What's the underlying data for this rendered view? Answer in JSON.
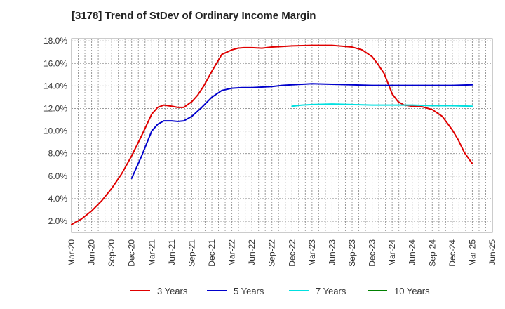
{
  "title": "[3178]  Trend of StDev of Ordinary Income Margin",
  "chart_data": {
    "type": "line",
    "x_ticks": [
      "Mar-20",
      "Jun-20",
      "Sep-20",
      "Dec-20",
      "Mar-21",
      "Jun-21",
      "Sep-21",
      "Dec-21",
      "Mar-22",
      "Jun-22",
      "Sep-22",
      "Dec-22",
      "Mar-23",
      "Jun-23",
      "Sep-23",
      "Dec-23",
      "Mar-24",
      "Jun-24",
      "Sep-24",
      "Dec-24",
      "Mar-25",
      "Jun-25"
    ],
    "y_ticks": [
      "2.0%",
      "4.0%",
      "6.0%",
      "8.0%",
      "10.0%",
      "12.0%",
      "14.0%",
      "16.0%",
      "18.0%"
    ],
    "ylim": [
      1.0,
      18.2
    ],
    "grid": true,
    "legend_position": "bottom",
    "series": [
      {
        "name": "3 Years",
        "color": "#e00000",
        "x": [
          0,
          0.5,
          1,
          1.5,
          2,
          2.5,
          3,
          3.5,
          4,
          4.3,
          4.6,
          5,
          5.3,
          5.6,
          6,
          6.3,
          6.6,
          7,
          7.5,
          8,
          8.3,
          8.6,
          9,
          9.5,
          10,
          10.5,
          11,
          12,
          13,
          14,
          14.5,
          15,
          15.3,
          15.6,
          16,
          16.3,
          16.6,
          17,
          17.5,
          18,
          18.5,
          19,
          19.3,
          19.6,
          20
        ],
        "y": [
          1.7,
          2.2,
          2.9,
          3.8,
          4.9,
          6.2,
          7.8,
          9.6,
          11.5,
          12.1,
          12.3,
          12.2,
          12.1,
          12.1,
          12.6,
          13.2,
          14.0,
          15.3,
          16.8,
          17.2,
          17.35,
          17.4,
          17.4,
          17.35,
          17.45,
          17.5,
          17.55,
          17.6,
          17.6,
          17.45,
          17.2,
          16.6,
          15.9,
          15.1,
          13.3,
          12.6,
          12.3,
          12.2,
          12.15,
          11.9,
          11.3,
          10.1,
          9.2,
          8.1,
          7.1
        ]
      },
      {
        "name": "5 Years",
        "color": "#0000cc",
        "x": [
          3,
          3.5,
          4,
          4.3,
          4.6,
          5,
          5.3,
          5.6,
          6,
          6.5,
          7,
          7.5,
          8,
          8.5,
          9,
          9.5,
          10,
          10.5,
          11,
          12,
          13,
          14,
          15,
          16,
          17,
          18,
          19,
          20
        ],
        "y": [
          5.8,
          7.8,
          10.0,
          10.6,
          10.9,
          10.9,
          10.85,
          10.9,
          11.3,
          12.1,
          13.0,
          13.6,
          13.8,
          13.85,
          13.85,
          13.9,
          13.95,
          14.05,
          14.1,
          14.2,
          14.15,
          14.1,
          14.05,
          14.05,
          14.05,
          14.05,
          14.05,
          14.1
        ]
      },
      {
        "name": "7 Years",
        "color": "#00e0e0",
        "x": [
          11,
          11.5,
          12,
          13,
          14,
          15,
          16,
          17,
          18,
          19,
          20
        ],
        "y": [
          12.2,
          12.3,
          12.35,
          12.4,
          12.35,
          12.3,
          12.3,
          12.3,
          12.25,
          12.25,
          12.2
        ]
      },
      {
        "name": "10 Years",
        "color": "#008000",
        "x": [],
        "y": []
      }
    ]
  }
}
